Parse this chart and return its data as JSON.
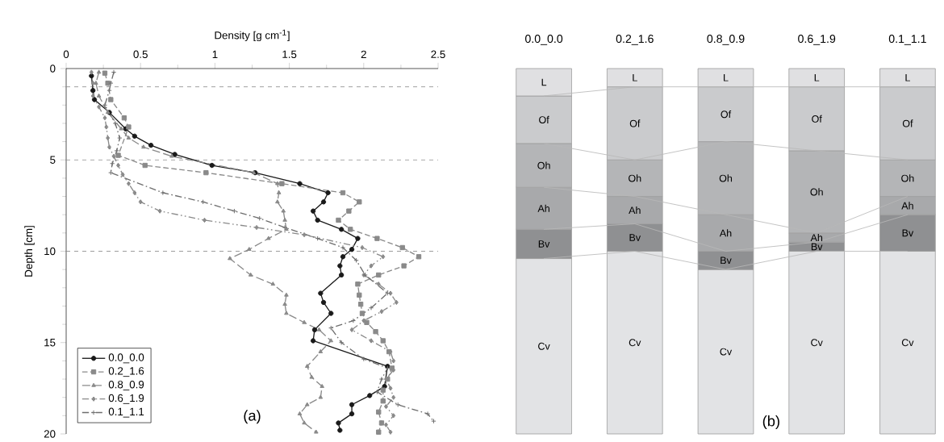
{
  "chart_data": [
    {
      "type": "line",
      "xlabel": "Density [g cm$^{-1}$]",
      "ylabel": "Depth [cm]",
      "xlim": [
        0,
        2.5
      ],
      "xticks": [
        0,
        0.5,
        1,
        1.5,
        2,
        2.5
      ],
      "ylim": [
        20,
        0
      ],
      "yticks": [
        0,
        5,
        10,
        15,
        20
      ],
      "legend": "bottom left",
      "annotations": [
        "(a)"
      ],
      "ref_lines": [
        {
          "axis": "y",
          "value": 1,
          "line_style": "dashed",
          "color": "#8a8a8a"
        },
        {
          "axis": "y",
          "value": 5,
          "line_style": "dashed",
          "color": "#8a8a8a"
        },
        {
          "axis": "y",
          "value": 10,
          "line_style": "dashed",
          "color": "#8a8a8a"
        }
      ],
      "series": [
        {
          "name": "0.0_0.0",
          "color": "#1a1a1a",
          "marker": "circle",
          "line_style": "solid",
          "x": [
            0.17,
            0.18,
            0.19,
            0.29,
            0.4,
            0.46,
            0.57,
            0.73,
            0.98,
            1.27,
            1.57,
            1.76,
            1.73,
            1.66,
            1.69,
            1.85,
            1.96,
            1.92,
            1.86,
            1.84,
            1.85,
            1.71,
            1.73,
            1.78,
            1.67,
            1.66,
            2.16,
            2.14,
            2.04,
            1.92,
            1.92,
            1.83,
            1.84
          ],
          "values": [
            0.4,
            1.2,
            1.7,
            2.4,
            3.3,
            3.7,
            4.2,
            4.7,
            5.3,
            5.7,
            6.3,
            6.8,
            7.3,
            7.8,
            8.3,
            8.8,
            9.3,
            9.9,
            10.3,
            10.8,
            11.3,
            12.3,
            12.8,
            13.4,
            14.3,
            14.9,
            16.3,
            17.4,
            17.9,
            18.4,
            18.9,
            19.4,
            19.8
          ]
        },
        {
          "name": "0.2_1.6",
          "color": "#8a8a8a",
          "marker": "square",
          "line_style": "dashed",
          "x": [
            0.26,
            0.28,
            0.3,
            0.39,
            0.42,
            0.35,
            0.53,
            0.94,
            1.45,
            1.86,
            1.97,
            1.9,
            1.83,
            1.91,
            2.09,
            2.26,
            2.37,
            2.27,
            2.1,
            1.96,
            1.97,
            1.98,
            1.99,
            2.02,
            2.08,
            2.13,
            2.17,
            2.19,
            2.16,
            2.13,
            2.13,
            2.1,
            2.12,
            2.1
          ],
          "values": [
            0.25,
            0.8,
            1.7,
            2.7,
            3.2,
            4.75,
            5.3,
            5.7,
            6.3,
            6.8,
            7.3,
            7.8,
            8.3,
            8.8,
            9.3,
            9.8,
            10.3,
            10.8,
            11.3,
            11.8,
            12.4,
            12.9,
            13.4,
            13.9,
            14.4,
            14.9,
            15.5,
            16.4,
            17.0,
            17.6,
            18.2,
            18.8,
            19.4,
            19.9
          ]
        },
        {
          "name": "0.8_0.9",
          "color": "#8a8a8a",
          "marker": "triangle",
          "line_style": "dashed",
          "x": [
            0.22,
            0.2,
            0.22,
            0.28,
            0.37,
            0.42,
            0.52,
            0.71,
            1.26,
            1.42,
            1.43,
            1.42,
            1.46,
            1.47,
            1.48,
            1.36,
            1.23,
            1.1,
            1.24,
            1.39,
            1.48,
            1.47,
            1.48,
            1.6,
            1.7,
            1.78,
            1.71,
            1.62,
            1.65,
            1.72,
            1.71,
            1.62,
            1.57,
            1.6,
            1.68
          ],
          "values": [
            0.2,
            0.8,
            1.5,
            2.4,
            3.3,
            3.8,
            4.3,
            4.8,
            5.7,
            6.3,
            6.8,
            7.3,
            7.8,
            8.3,
            8.8,
            9.3,
            9.9,
            10.4,
            11.3,
            11.8,
            12.4,
            12.9,
            13.4,
            13.9,
            14.3,
            14.9,
            15.5,
            16.3,
            16.9,
            17.4,
            18.0,
            18.4,
            18.9,
            19.4,
            19.9
          ]
        },
        {
          "name": "0.6_1.9",
          "color": "#8a8a8a",
          "marker": "diamond",
          "line_style": "dashed",
          "x": [
            0.17,
            0.18,
            0.18,
            0.22,
            0.26,
            0.27,
            0.28,
            0.29,
            0.32,
            0.35,
            0.38,
            0.42,
            0.46,
            0.5,
            0.63,
            0.93,
            1.28,
            1.6,
            1.99,
            2.13,
            2.05,
            2.0,
            2.1,
            2.18,
            2.22,
            2.12,
            2.0,
            1.92,
            2.05,
            2.18,
            2.2,
            2.2,
            2.15,
            2.18,
            2.2,
            2.15,
            2.2,
            2.15,
            2.18
          ],
          "values": [
            0.2,
            0.8,
            1.5,
            2.1,
            2.7,
            3.2,
            3.8,
            4.3,
            4.8,
            5.3,
            5.8,
            6.3,
            6.8,
            7.3,
            7.8,
            8.3,
            8.7,
            9.1,
            9.8,
            10.3,
            10.8,
            11.3,
            11.8,
            12.3,
            12.8,
            13.3,
            13.8,
            14.3,
            14.9,
            15.5,
            16.0,
            16.5,
            17.0,
            17.5,
            18.0,
            18.5,
            19.0,
            19.5,
            19.9
          ]
        },
        {
          "name": "0.1_1.1",
          "color": "#6e6e6e",
          "marker": "cross",
          "line_style": "dashed",
          "x": [
            0.32,
            0.3,
            0.29,
            0.26,
            0.33,
            0.36,
            0.34,
            0.31,
            0.3,
            0.65,
            0.92,
            1.13,
            1.3,
            1.47,
            1.69,
            1.86,
            1.95,
            2.01,
            2.16,
            2.05,
            1.93,
            1.78,
            1.85,
            2.0,
            2.16,
            2.12,
            2.09,
            2.23,
            2.43,
            2.47
          ],
          "values": [
            0.2,
            0.8,
            1.2,
            2.0,
            3.0,
            3.8,
            4.5,
            5.2,
            5.7,
            6.8,
            7.3,
            7.8,
            8.2,
            8.7,
            9.3,
            9.8,
            10.5,
            11.3,
            12.3,
            13.1,
            13.8,
            14.2,
            15.0,
            15.9,
            16.4,
            17.0,
            17.7,
            18.4,
            18.9,
            19.3
          ]
        }
      ]
    },
    {
      "type": "bar",
      "stacked": true,
      "categories": [
        "0.0_0.0",
        "0.2_1.6",
        "0.8_0.9",
        "0.6_1.9",
        "0.1_1.1"
      ],
      "ylim": [
        20,
        0
      ],
      "tick_labels": "x",
      "annotations": [
        "(b)"
      ],
      "series": [
        {
          "name": "L",
          "color": "#e0e0e2",
          "values": [
            1.5,
            1,
            1,
            1,
            1
          ]
        },
        {
          "name": "Of",
          "color": "#cacbcd",
          "values": [
            2.6,
            4,
            3,
            3.5,
            4
          ]
        },
        {
          "name": "Oh",
          "color": "#b4b5b7",
          "values": [
            2.4,
            2,
            4,
            4.5,
            2
          ]
        },
        {
          "name": "Ah",
          "color": "#a8a9ab",
          "values": [
            2.3,
            1.5,
            2,
            0.5,
            1
          ]
        },
        {
          "name": "Bv",
          "color": "#8f9092",
          "values": [
            1.6,
            1.5,
            1,
            0.5,
            2
          ]
        },
        {
          "name": "Cv",
          "color": "#e2e3e5",
          "values": [
            9.6,
            10,
            9,
            10,
            10
          ]
        }
      ]
    }
  ]
}
